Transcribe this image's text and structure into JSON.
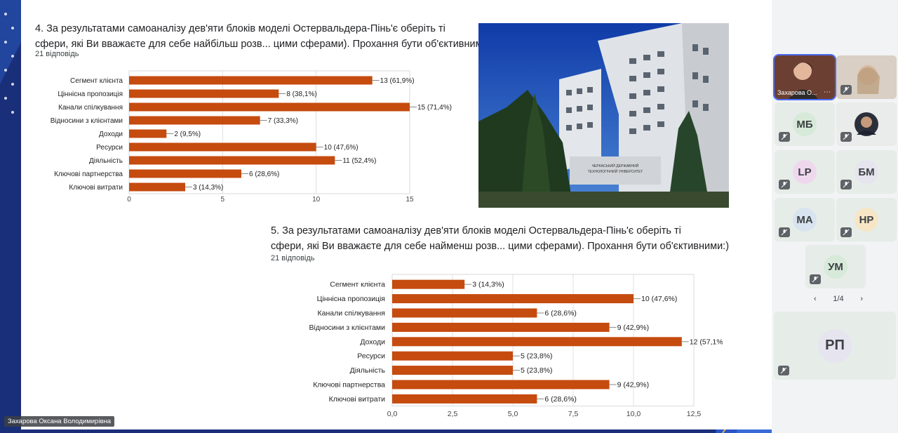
{
  "presenter_name": "Захарова Оксана Володимирівна",
  "q4": {
    "title_line1": "4. За результатами самоаналізу дев'яти блоків моделі Остервальдера-Пінь'є  оберіть ті",
    "title_line2": "сфери, які Ви вважаєте для себе найбільш розв... цими сферами). Прохання бути об'єктивними:)",
    "responses": "21 відповідь"
  },
  "q5": {
    "title_line1": "5. За результатами самоаналізу дев'яти блоків моделі Остервальдера-Пінь'є   оберіть ті",
    "title_line2": "сфери, які Ви вважаєте для себе найменш розв... цими сферами). Прохання бути об'єктивними:)",
    "responses": "21 відповідь"
  },
  "photo": {
    "building_sign_line1": "ЧЕРКАСЬКИЙ ДЕРЖАВНИЙ",
    "building_sign_line2": "ТЕХНОЛОГІЧНИЙ УНІВЕРСИТЕТ"
  },
  "chart_data": [
    {
      "type": "bar",
      "orientation": "horizontal",
      "categories": [
        "Сегмент клієнта",
        "Ціннісна пропозиція",
        "Канали спілкування",
        "Відносини з клієнтами",
        "Доходи",
        "Ресурси",
        "Діяльність",
        "Ключові партнерства",
        "Ключові витрати"
      ],
      "values": [
        13,
        8,
        15,
        7,
        2,
        10,
        11,
        6,
        3
      ],
      "data_labels": [
        "13 (61,9%)",
        "8 (38,1%)",
        "15 (71,4%)",
        "7 (33,3%)",
        "2 (9,5%)",
        "10 (47,6%)",
        "11 (52,4%)",
        "6 (28,6%)",
        "3 (14,3%)"
      ],
      "xlim": [
        0,
        15
      ],
      "xticks": [
        "0",
        "5",
        "10",
        "15"
      ],
      "grid": true,
      "color": "#c54b0f"
    },
    {
      "type": "bar",
      "orientation": "horizontal",
      "categories": [
        "Сегмент клієнта",
        "Ціннісна пропозиція",
        "Канали спілкування",
        "Відносини з клієнтами",
        "Доходи",
        "Ресурси",
        "Діяльність",
        "Ключові партнерства",
        "Ключові витрати"
      ],
      "values": [
        3,
        10,
        6,
        9,
        12,
        5,
        5,
        9,
        6
      ],
      "data_labels": [
        "3 (14,3%)",
        "10 (47,6%)",
        "6 (28,6%)",
        "9 (42,9%)",
        "12 (57,1%)",
        "5 (23,8%)",
        "5 (23,8%)",
        "9 (42,9%)",
        "6 (28,6%)"
      ],
      "xlim": [
        0,
        12.5
      ],
      "xticks": [
        "0,0",
        "2,5",
        "5,0",
        "7,5",
        "10,0",
        "12,5"
      ],
      "grid": true,
      "color": "#c54b0f"
    }
  ],
  "participants": {
    "tiles": [
      {
        "initials": "",
        "name": "Захарова О...",
        "color": "#7b4a3a"
      },
      {
        "initials": "",
        "color": "#c9b9a8"
      },
      {
        "initials": "МБ",
        "color": "#d7ead9"
      },
      {
        "initials": "",
        "color": "#e9ecea"
      },
      {
        "initials": "LP",
        "color": "#efd8ee"
      },
      {
        "initials": "БМ",
        "color": "#e6e4ef"
      },
      {
        "initials": "МА",
        "color": "#d7e3ef"
      },
      {
        "initials": "НР",
        "color": "#f7e6c6"
      },
      {
        "initials": "УМ",
        "color": "#d7ead9"
      },
      {
        "initials": "РП",
        "color": "#e6e4ef"
      }
    ],
    "page": "1/4"
  }
}
